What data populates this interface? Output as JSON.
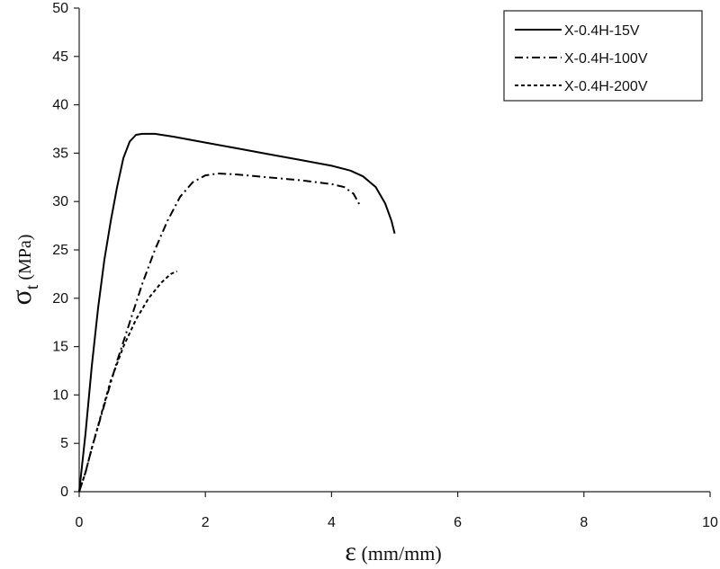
{
  "chart_data": {
    "type": "line",
    "title": "",
    "xlabel": {
      "symbol": "ε",
      "unit": " (mm/mm)"
    },
    "ylabel": {
      "symbol": "σ",
      "subscript": "t",
      "unit": " (MPa)"
    },
    "xlim": [
      0,
      10
    ],
    "ylim": [
      0,
      50
    ],
    "x_ticks": [
      0,
      2,
      4,
      6,
      8,
      10
    ],
    "y_ticks": [
      0,
      5,
      10,
      15,
      20,
      25,
      30,
      35,
      40,
      45,
      50
    ],
    "grid": false,
    "legend_position": "top-right",
    "series": [
      {
        "name": "X-0.4H-15V",
        "color": "#000000",
        "dash": "solid",
        "points": [
          [
            0,
            0
          ],
          [
            0.05,
            3
          ],
          [
            0.1,
            6
          ],
          [
            0.2,
            13
          ],
          [
            0.3,
            19
          ],
          [
            0.4,
            24
          ],
          [
            0.5,
            28
          ],
          [
            0.6,
            31.5
          ],
          [
            0.7,
            34.5
          ],
          [
            0.8,
            36.2
          ],
          [
            0.9,
            36.9
          ],
          [
            1.0,
            37.0
          ],
          [
            1.2,
            37.0
          ],
          [
            1.5,
            36.7
          ],
          [
            2.0,
            36.1
          ],
          [
            2.5,
            35.5
          ],
          [
            3.0,
            34.9
          ],
          [
            3.5,
            34.3
          ],
          [
            4.0,
            33.7
          ],
          [
            4.3,
            33.2
          ],
          [
            4.5,
            32.6
          ],
          [
            4.7,
            31.5
          ],
          [
            4.85,
            29.8
          ],
          [
            4.95,
            28.0
          ],
          [
            5.0,
            26.7
          ]
        ]
      },
      {
        "name": "X-0.4H-100V",
        "color": "#000000",
        "dash": "dash-dot",
        "points": [
          [
            0,
            0
          ],
          [
            0.1,
            2
          ],
          [
            0.2,
            4.5
          ],
          [
            0.4,
            9
          ],
          [
            0.6,
            13.5
          ],
          [
            0.8,
            17.5
          ],
          [
            1.0,
            21.5
          ],
          [
            1.2,
            25
          ],
          [
            1.4,
            28
          ],
          [
            1.6,
            30.5
          ],
          [
            1.8,
            32
          ],
          [
            2.0,
            32.7
          ],
          [
            2.2,
            32.9
          ],
          [
            2.5,
            32.8
          ],
          [
            3.0,
            32.5
          ],
          [
            3.5,
            32.2
          ],
          [
            4.0,
            31.8
          ],
          [
            4.2,
            31.5
          ],
          [
            4.35,
            30.8
          ],
          [
            4.45,
            29.6
          ]
        ]
      },
      {
        "name": "X-0.4H-200V",
        "color": "#000000",
        "dash": "dashed",
        "points": [
          [
            0,
            0
          ],
          [
            0.1,
            2
          ],
          [
            0.2,
            4.5
          ],
          [
            0.35,
            8
          ],
          [
            0.5,
            11.5
          ],
          [
            0.7,
            15
          ],
          [
            0.9,
            17.8
          ],
          [
            1.1,
            20
          ],
          [
            1.3,
            21.6
          ],
          [
            1.45,
            22.5
          ],
          [
            1.55,
            22.8
          ]
        ]
      }
    ]
  }
}
